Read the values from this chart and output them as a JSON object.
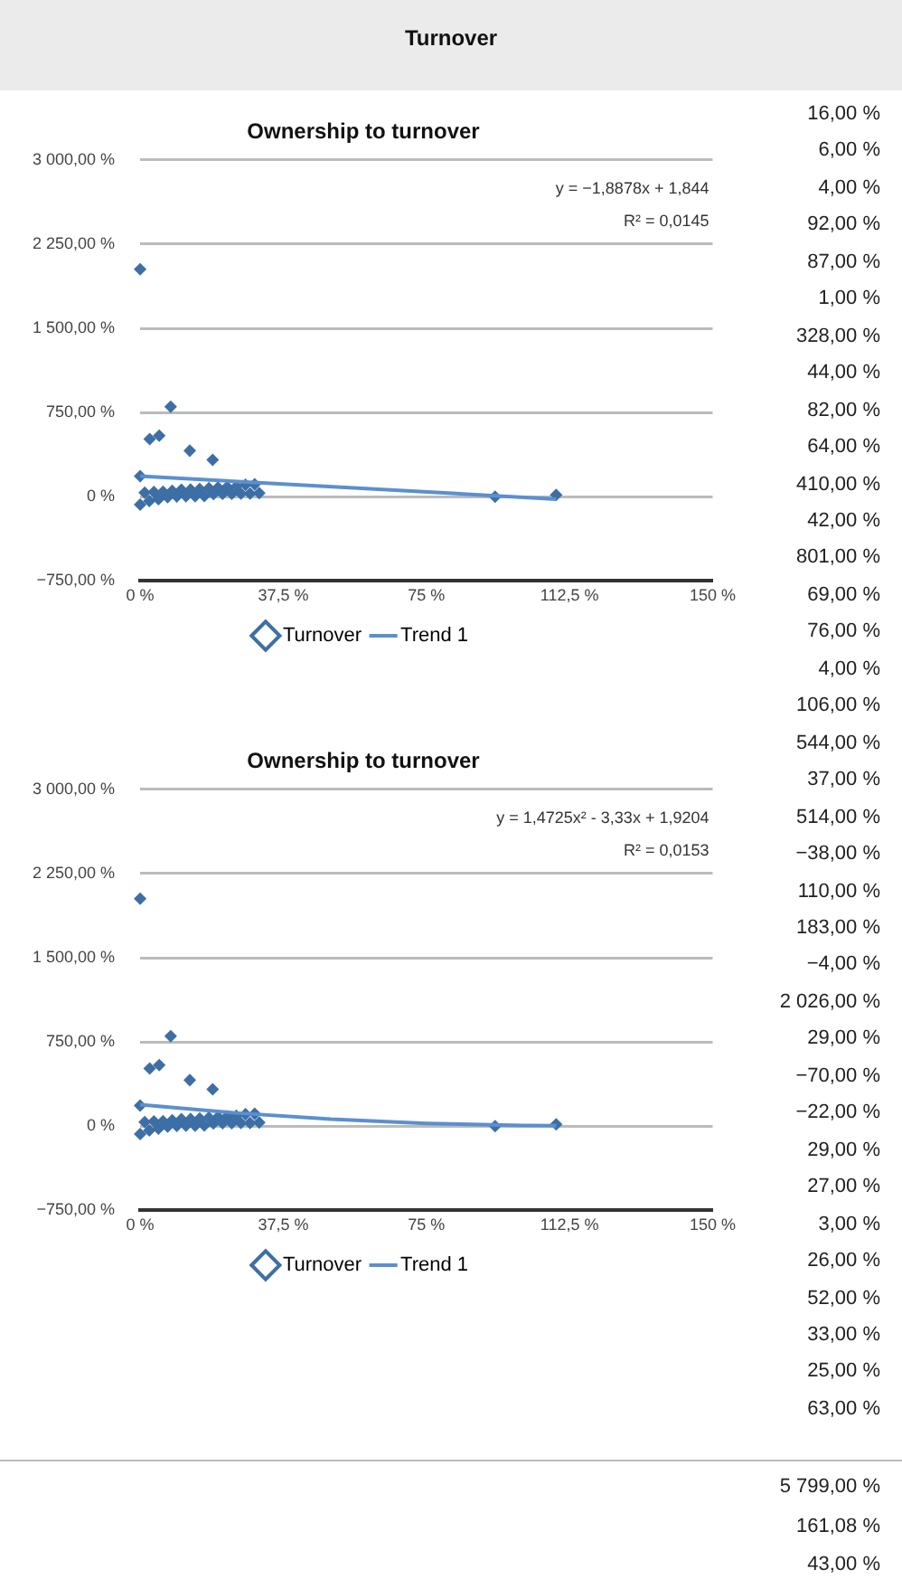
{
  "chart_data": [
    {
      "type": "other",
      "title": "Turnover",
      "annotations": [
        "16,00 %",
        "6,00 %",
        "4,00 %",
        "92,00 %",
        "87,00 %",
        "1,00 %",
        "328,00 %",
        "44,00 %",
        "82,00 %",
        "64,00 %",
        "410,00 %",
        "42,00 %",
        "801,00 %",
        "69,00 %",
        "76,00 %",
        "4,00 %",
        "106,00 %",
        "544,00 %",
        "37,00 %",
        "514,00 %",
        "−38,00 %",
        "110,00 %",
        "183,00 %",
        "−4,00 %",
        "2 026,00 %",
        "29,00 %",
        "−70,00 %",
        "−22,00 %",
        "29,00 %",
        "27,00 %",
        "3,00 %",
        "26,00 %",
        "52,00 %",
        "33,00 %",
        "25,00 %",
        "63,00 %"
      ]
    },
    {
      "type": "scatter",
      "title": "Ownership to turnover",
      "grid": "y",
      "legend": "bottom",
      "xlim": [
        0,
        150
      ],
      "xticks": [
        {
          "value": 0,
          "label": "0 %"
        },
        {
          "value": 37.5,
          "label": "37,5 %"
        },
        {
          "value": 75,
          "label": "75 %"
        },
        {
          "value": 112.5,
          "label": "112,5 %"
        },
        {
          "value": 150,
          "label": "150 %"
        }
      ],
      "ylim": [
        -750,
        3000
      ],
      "yticks": [
        {
          "value": -750,
          "label": "−750,00 %"
        },
        {
          "value": 0,
          "label": "0 %"
        },
        {
          "value": 750,
          "label": "750,00 %"
        },
        {
          "value": 1500,
          "label": "1 500,00 %"
        },
        {
          "value": 2250,
          "label": "2 250,00 %"
        },
        {
          "value": 3000,
          "label": "3 000,00 %"
        }
      ],
      "annotations": [
        "y = −1,8878x + 1,844",
        "R² = 0,0145"
      ],
      "series": [
        {
          "name": "Turnover",
          "type": "scatter",
          "marker": "diamond",
          "color": "#3d6fa6",
          "x": [
            109,
            0,
            1.2,
            2.4,
            3.6,
            4.8,
            6,
            7.2,
            8.4,
            9.6,
            10.8,
            12,
            13.2,
            14.4,
            15.6,
            16.8,
            18,
            19.2,
            20.4,
            21.6,
            22.8,
            24,
            25.2,
            26.4,
            27.6,
            28.8,
            30,
            31.2,
            93,
            0,
            19,
            13,
            8,
            5,
            2.5,
            0
          ],
          "values": [
            16,
            -70,
            37,
            -38,
            42,
            -22,
            44,
            -4,
            52,
            3,
            63,
            4,
            64,
            4,
            69,
            6,
            76,
            25,
            82,
            26,
            87,
            27,
            92,
            29,
            106,
            29,
            110,
            33,
            1,
            183,
            328,
            410,
            801,
            544,
            514,
            2026
          ]
        },
        {
          "name": "Trend 1",
          "type": "line",
          "marker": "none",
          "color": "#5b8fd0",
          "x": [
            0,
            109
          ],
          "values": [
            184,
            -21
          ]
        }
      ]
    },
    {
      "type": "scatter",
      "title": "Ownership to turnover",
      "grid": "y",
      "legend": "bottom",
      "xlim": [
        0,
        150
      ],
      "xticks": [
        {
          "value": 0,
          "label": "0 %"
        },
        {
          "value": 37.5,
          "label": "37,5 %"
        },
        {
          "value": 75,
          "label": "75 %"
        },
        {
          "value": 112.5,
          "label": "112,5 %"
        },
        {
          "value": 150,
          "label": "150 %"
        }
      ],
      "ylim": [
        -750,
        3000
      ],
      "yticks": [
        {
          "value": -750,
          "label": "−750,00 %"
        },
        {
          "value": 0,
          "label": "0 %"
        },
        {
          "value": 750,
          "label": "750,00 %"
        },
        {
          "value": 1500,
          "label": "1 500,00 %"
        },
        {
          "value": 2250,
          "label": "2 250,00 %"
        },
        {
          "value": 3000,
          "label": "3 000,00 %"
        }
      ],
      "annotations": [
        "y = 1,4725x² - 3,33x + 1,9204",
        "R² = 0,0153"
      ],
      "series": [
        {
          "name": "Turnover",
          "type": "scatter",
          "marker": "diamond",
          "color": "#3d6fa6",
          "x": [
            109,
            0,
            1.2,
            2.4,
            3.6,
            4.8,
            6,
            7.2,
            8.4,
            9.6,
            10.8,
            12,
            13.2,
            14.4,
            15.6,
            16.8,
            18,
            19.2,
            20.4,
            21.6,
            22.8,
            24,
            25.2,
            26.4,
            27.6,
            28.8,
            30,
            31.2,
            93,
            0,
            19,
            13,
            8,
            5,
            2.5,
            0
          ],
          "values": [
            16,
            -70,
            37,
            -38,
            42,
            -22,
            44,
            -4,
            52,
            3,
            63,
            4,
            64,
            4,
            69,
            6,
            76,
            25,
            82,
            26,
            87,
            27,
            92,
            29,
            106,
            29,
            110,
            33,
            1,
            183,
            328,
            410,
            801,
            544,
            514,
            2026
          ]
        },
        {
          "name": "Trend 1",
          "type": "line",
          "marker": "none",
          "color": "#5b8fd0",
          "x": [
            0,
            25,
            50,
            75,
            100,
            109
          ],
          "values": [
            192,
            118,
            62,
            25,
            6,
            4
          ]
        }
      ]
    },
    {
      "type": "other",
      "annotations": [
        "5 799,00 %",
        "161,08 %",
        "43,00 %"
      ]
    }
  ]
}
